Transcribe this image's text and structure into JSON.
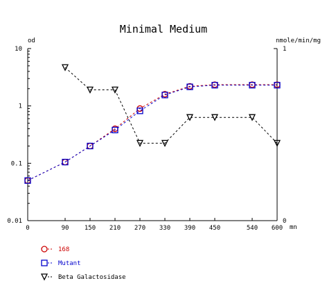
{
  "chart_data": {
    "type": "line",
    "title": "Minimal Medium",
    "xlabel": "mn",
    "ylabel_left": "od",
    "ylabel_right": "nmole/min/mg",
    "x": [
      0,
      90,
      150,
      210,
      270,
      330,
      390,
      450,
      540,
      600
    ],
    "x_ticks": [
      "0",
      "90",
      "150",
      "210",
      "270",
      "330",
      "390",
      "450",
      "540",
      "600"
    ],
    "y_left": {
      "scale": "log",
      "range": [
        0.01,
        10
      ],
      "ticks": [
        "10",
        "1",
        "0.1",
        "0.01"
      ]
    },
    "y_right": {
      "scale": "linear",
      "range": [
        0,
        1
      ],
      "ticks": [
        "1",
        "0"
      ]
    },
    "grid": false,
    "legend_position": "bottom-left",
    "series": [
      {
        "name": "168",
        "axis": "left",
        "marker": "circle",
        "color": "#cc0000",
        "values": [
          0.05,
          0.105,
          0.2,
          0.4,
          0.9,
          1.6,
          2.2,
          2.35,
          2.35,
          2.35
        ]
      },
      {
        "name": "Mutant",
        "axis": "left",
        "marker": "square",
        "color": "#0000cc",
        "values": [
          0.05,
          0.105,
          0.2,
          0.38,
          0.82,
          1.55,
          2.15,
          2.3,
          2.3,
          2.3
        ]
      },
      {
        "name": "Beta Galactosidase",
        "axis": "right",
        "marker": "triangle-down",
        "color": "#000000",
        "x": [
          90,
          150,
          210,
          270,
          330,
          390,
          450,
          540,
          600
        ],
        "values": [
          0.89,
          0.76,
          0.76,
          0.45,
          0.45,
          0.6,
          0.6,
          0.6,
          0.45
        ]
      }
    ]
  }
}
